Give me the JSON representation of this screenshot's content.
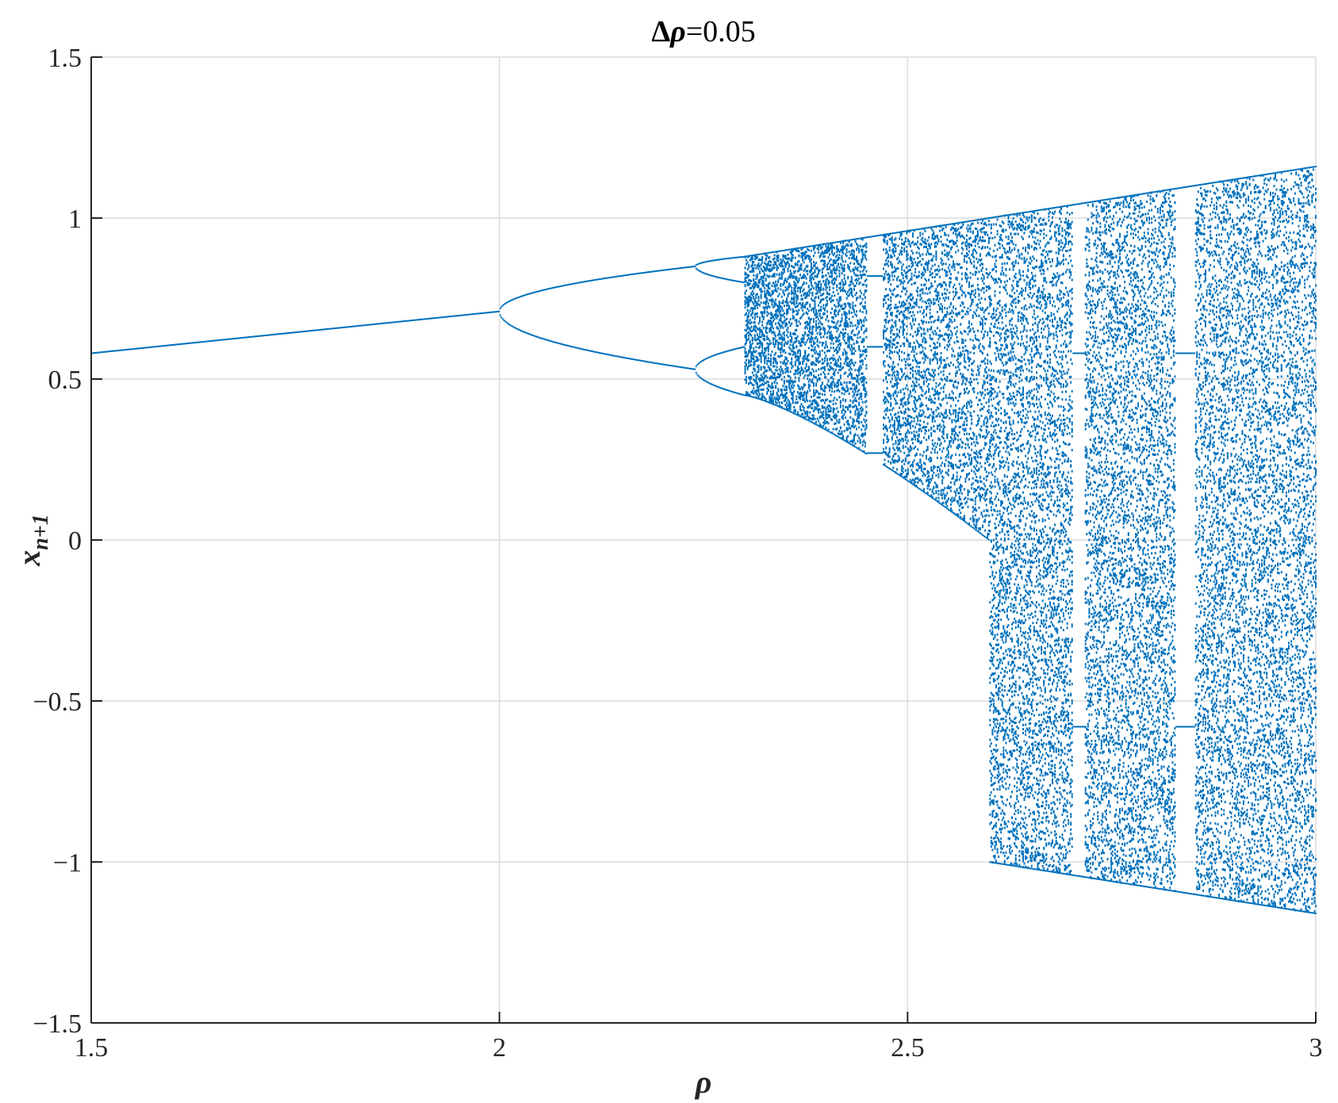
{
  "chart_data": {
    "type": "scatter",
    "title": {
      "prefix": "Δ",
      "symbol": "ρ",
      "suffix": "=0.05"
    },
    "xlabel": "ρ",
    "ylabel": {
      "base": "x",
      "subscript": "n+1"
    },
    "xlim": [
      1.5,
      3
    ],
    "ylim": [
      -1.5,
      1.5
    ],
    "xticks": [
      1.5,
      2,
      2.5,
      3
    ],
    "xtick_labels": [
      "1.5",
      "2",
      "2.5",
      "3"
    ],
    "yticks": [
      -1.5,
      -1,
      -0.5,
      0,
      0.5,
      1,
      1.5
    ],
    "ytick_labels": [
      "−1.5",
      "−1",
      "−0.5",
      "0",
      "0.5",
      "1",
      "1.5"
    ],
    "grid": true,
    "series": [
      {
        "color": "#0072BD",
        "description_of_structure": null,
        "regimes": [
          {
            "x_range": [
              1.5,
              2.0
            ],
            "kind": "fixed-point",
            "y_at_start": 0.58,
            "y_at_end": 0.71
          },
          {
            "x_range": [
              2.0,
              2.24
            ],
            "kind": "period-2",
            "upper_end": 0.85,
            "lower_end": 0.53
          },
          {
            "x_range": [
              2.24,
              2.3
            ],
            "kind": "period-4",
            "upper": [
              0.85,
              0.88,
              0.8,
              0.82
            ],
            "lower": [
              0.53,
              0.6,
              0.53,
              0.45
            ]
          },
          {
            "x_range": [
              2.3,
              2.6
            ],
            "kind": "chaotic-band",
            "upper_end": 1.0,
            "lower_start": 0.45,
            "lower_end": 0.0
          },
          {
            "x_range": [
              2.6,
              3.0
            ],
            "kind": "chaotic-wide",
            "upper_start": 1.0,
            "upper_end": 1.16,
            "lower_start": -1.0,
            "lower_end": -1.16
          }
        ],
        "windows": [
          2.46,
          2.71,
          2.84
        ]
      }
    ]
  }
}
